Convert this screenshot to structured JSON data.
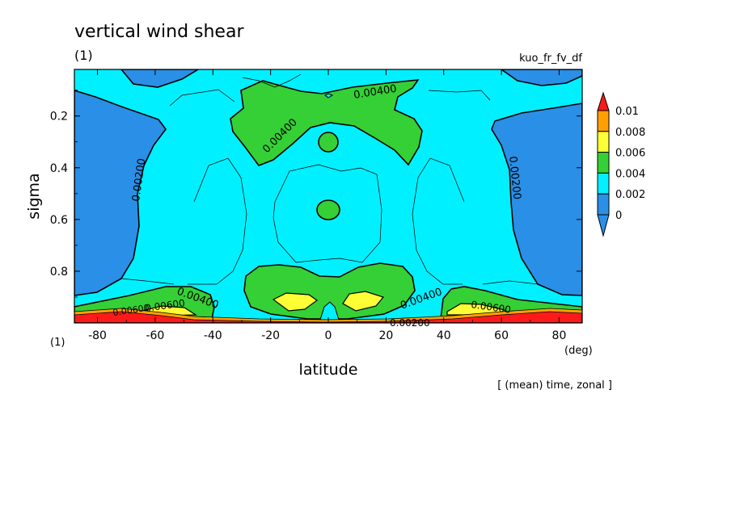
{
  "title": "vertical wind shear",
  "subtitle": "(1)",
  "experiment": "kuo_fr_fv_df",
  "footer": "[ (mean) time, zonal ]",
  "chart_data": {
    "type": "heatmap",
    "title": "vertical wind shear",
    "xlabel": "latitude",
    "x_unit": "(deg)",
    "ylabel": "sigma",
    "y_unit": "(1)",
    "xlim": [
      -88,
      88
    ],
    "ylim": [
      1.0,
      0.02
    ],
    "xticks": [
      "-80",
      "-60",
      "-40",
      "-20",
      "0",
      "20",
      "40",
      "60",
      "80"
    ],
    "yticks": [
      "0.2",
      "0.4",
      "0.6",
      "0.8"
    ],
    "colorbar": {
      "levels": [
        "0",
        "0.002",
        "0.004",
        "0.006",
        "0.008",
        "0.01"
      ],
      "colors": [
        "#2a8fe6",
        "#00f0ff",
        "#35d035",
        "#ffff35",
        "#ffa000",
        "#ff1a1a"
      ]
    },
    "contour_labels": [
      "0.00400",
      "0.00400",
      "0.00200",
      "0.00200",
      "0.00400",
      "0.00400",
      "0.00600",
      "0.00600",
      "0.00600",
      "0.00200"
    ],
    "color_bands": [
      {
        "name": "band-0-0.002",
        "level": 0
      },
      {
        "name": "band-0.002-0.004",
        "level": 0.002
      },
      {
        "name": "band-0.004-0.006",
        "level": 0.004
      },
      {
        "name": "band-0.006-0.008",
        "level": 0.006
      },
      {
        "name": "band-0.008-0.01",
        "level": 0.008
      }
    ]
  }
}
